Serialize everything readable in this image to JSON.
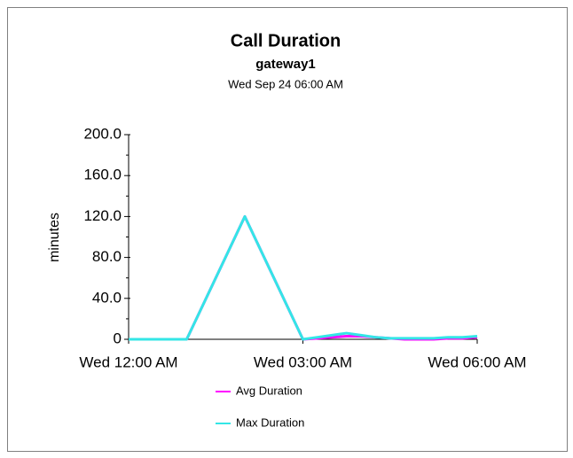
{
  "chart_data": {
    "type": "line",
    "title": "Call Duration",
    "subtitle": "gateway1",
    "date": "Wed Sep 24 06:00 AM",
    "y_label": "minutes",
    "x": [
      0,
      1,
      2,
      3,
      3.25,
      3.5,
      3.75,
      4,
      4.25,
      4.5,
      4.75,
      5,
      5.25,
      5.5,
      5.75,
      6
    ],
    "series": [
      {
        "name": "Avg Duration",
        "color": "#ff00ff",
        "values": [
          0,
          0,
          120,
          0,
          1,
          2,
          3,
          3,
          2,
          1,
          0,
          0,
          0,
          1,
          1,
          2
        ]
      },
      {
        "name": "Max Duration",
        "color": "#33e6e6",
        "values": [
          0,
          0,
          120,
          0,
          2,
          4,
          6,
          4,
          2,
          1,
          1,
          1,
          1,
          2,
          2,
          3
        ]
      }
    ],
    "xlim": [
      0,
      6
    ],
    "xticks": [
      {
        "value": 0,
        "label": "Wed 12:00 AM"
      },
      {
        "value": 3,
        "label": "Wed 03:00 AM"
      },
      {
        "value": 6,
        "label": "Wed 06:00 AM"
      }
    ],
    "ylim": [
      0,
      200
    ],
    "yticks": [
      0,
      {
        "value": 40,
        "label": "40.0"
      },
      {
        "value": 80,
        "label": "80.0"
      },
      {
        "value": 120,
        "label": "120.0"
      },
      {
        "value": 160,
        "label": "160.0"
      },
      {
        "value": 200,
        "label": "200.0"
      }
    ],
    "legend": "bottom"
  }
}
